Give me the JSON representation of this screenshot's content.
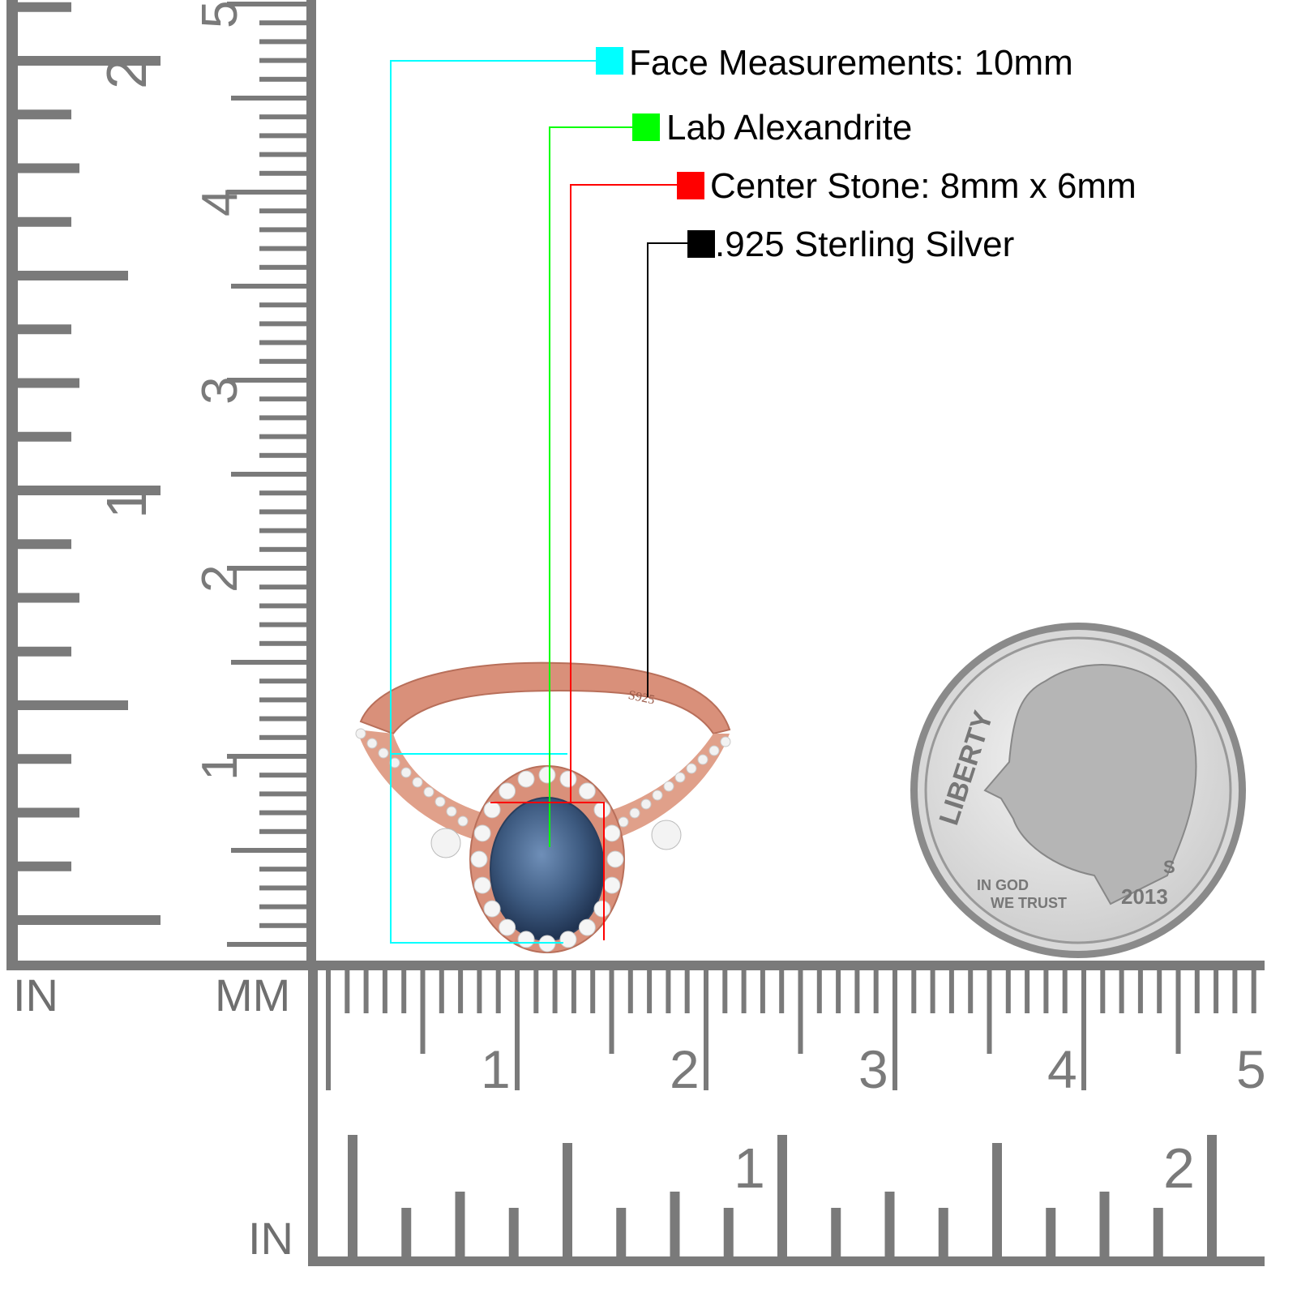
{
  "callouts": [
    {
      "label": "Face Measurements: 10mm",
      "color": "#00ffff"
    },
    {
      "label": "Lab Alexandrite",
      "color": "#00ff00"
    },
    {
      "label": "Center Stone: 8mm x 6mm",
      "color": "#ff0000"
    },
    {
      "label": ".925 Sterling Silver",
      "color": "#000000"
    }
  ],
  "rulers": {
    "color": "#7a7a7a",
    "vertical": {
      "inch_labels": [
        "1",
        "2"
      ],
      "mm_labels": [
        "1",
        "2",
        "3",
        "4",
        "5"
      ],
      "inch_unit": "IN",
      "mm_unit": "MM"
    },
    "horizontal": {
      "mm_labels": [
        "1",
        "2",
        "3",
        "4",
        "5"
      ],
      "inch_labels": [
        "1",
        "2"
      ],
      "inch_unit": "IN"
    }
  },
  "ring": {
    "stamp": "S925",
    "metal_color": "#d9907a",
    "stone_color": "#3d5a80"
  },
  "coin": {
    "liberty": "LIBERTY",
    "motto_line1": "IN GOD",
    "motto_line2": "WE TRUST",
    "year": "2013",
    "mint_mark": "S"
  }
}
